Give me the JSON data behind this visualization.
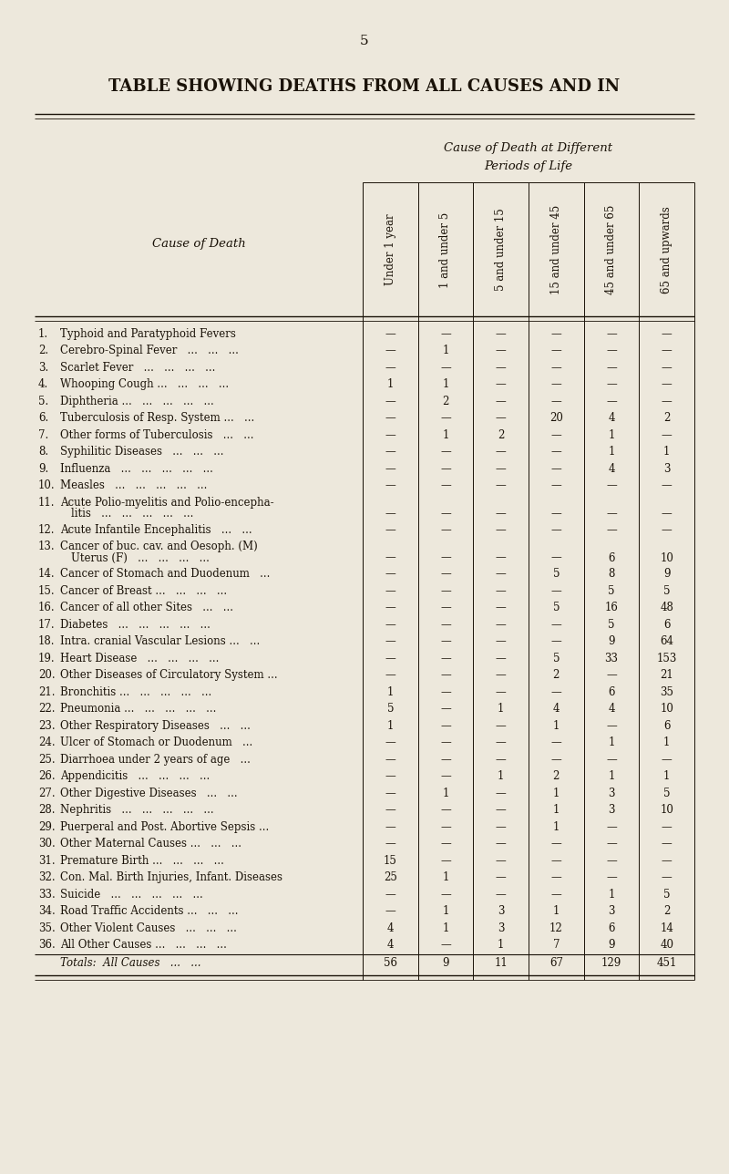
{
  "page_number": "5",
  "title": "TABLE SHOWING DEATHS FROM ALL CAUSES AND IN",
  "subtitle1": "Cause of Death at Different",
  "subtitle2": "Periods of Life",
  "col_header_left": "Cause of Death",
  "col_headers": [
    "Under 1 year",
    "1 and under 5",
    "5 and under 15",
    "15 and under 45",
    "45 and under 65",
    "65 and upwards"
  ],
  "bg_color": "#ede8dc",
  "text_color": "#1a1208",
  "rows": [
    {
      "num": "1.",
      "label": "Typhoid and Paratyphoid Fevers",
      "dots": "...",
      "vals": [
        "—",
        "—",
        "—",
        "—",
        "—",
        "—"
      ],
      "twolines": false
    },
    {
      "num": "2.",
      "label": "Cerebro-Spinal Fever   ...   ...   ...",
      "dots": "",
      "vals": [
        "—",
        "1",
        "—",
        "—",
        "—",
        "—"
      ],
      "twolines": false
    },
    {
      "num": "3.",
      "label": "Scarlet Fever   ...   ...   ...   ...",
      "dots": "",
      "vals": [
        "—",
        "—",
        "—",
        "—",
        "—",
        "—"
      ],
      "twolines": false
    },
    {
      "num": "4.",
      "label": "Whooping Cough ...   ...   ...   ...",
      "dots": "",
      "vals": [
        "1",
        "1",
        "—",
        "—",
        "—",
        "—"
      ],
      "twolines": false
    },
    {
      "num": "5.",
      "label": "Diphtheria ...   ...   ...   ...   ...",
      "dots": "",
      "vals": [
        "—",
        "2",
        "—",
        "—",
        "—",
        "—"
      ],
      "twolines": false
    },
    {
      "num": "6.",
      "label": "Tuberculosis of Resp. System ...   ...",
      "dots": "",
      "vals": [
        "—",
        "—",
        "—",
        "20",
        "4",
        "2"
      ],
      "twolines": false
    },
    {
      "num": "7.",
      "label": "Other forms of Tuberculosis   ...   ...",
      "dots": "",
      "vals": [
        "—",
        "1",
        "2",
        "—",
        "1",
        "—"
      ],
      "twolines": false
    },
    {
      "num": "8.",
      "label": "Syphilitic Diseases   ...   ...   ...",
      "dots": "",
      "vals": [
        "—",
        "—",
        "—",
        "—",
        "1",
        "1"
      ],
      "twolines": false
    },
    {
      "num": "9.",
      "label": "Influenza   ...   ...   ...   ...   ...",
      "dots": "",
      "vals": [
        "—",
        "—",
        "—",
        "—",
        "4",
        "3"
      ],
      "twolines": false
    },
    {
      "num": "10.",
      "label": "Measles   ...   ...   ...   ...   ...",
      "dots": "",
      "vals": [
        "—",
        "—",
        "—",
        "—",
        "—",
        "—"
      ],
      "twolines": false
    },
    {
      "num": "11.",
      "label1": "Acute Polio-myelitis and Polio-encepha-",
      "label2": "litis   ...   ...   ...   ...   ...",
      "dots": "",
      "vals": [
        "—",
        "—",
        "—",
        "—",
        "—",
        "—"
      ],
      "twolines": true
    },
    {
      "num": "12.",
      "label": "Acute Infantile Encephalitis   ...   ...",
      "dots": "",
      "vals": [
        "—",
        "—",
        "—",
        "—",
        "—",
        "—"
      ],
      "twolines": false
    },
    {
      "num": "13.",
      "label1": "Cancer of buc. cav. and Oesoph. (M)",
      "label2": "Uterus (F)   ...   ...   ...   ...",
      "dots": "",
      "vals": [
        "—",
        "—",
        "—",
        "—",
        "6",
        "10"
      ],
      "twolines": true
    },
    {
      "num": "14.",
      "label": "Cancer of Stomach and Duodenum   ...",
      "dots": "",
      "vals": [
        "—",
        "—",
        "—",
        "5",
        "8",
        "9"
      ],
      "twolines": false
    },
    {
      "num": "15.",
      "label": "Cancer of Breast ...   ...   ...   ...",
      "dots": "",
      "vals": [
        "—",
        "—",
        "—",
        "—",
        "5",
        "5"
      ],
      "twolines": false
    },
    {
      "num": "16.",
      "label": "Cancer of all other Sites   ...   ...",
      "dots": "",
      "vals": [
        "—",
        "—",
        "—",
        "5",
        "16",
        "48"
      ],
      "twolines": false
    },
    {
      "num": "17.",
      "label": "Diabetes   ...   ...   ...   ...   ...",
      "dots": "",
      "vals": [
        "—",
        "—",
        "—",
        "—",
        "5",
        "6"
      ],
      "twolines": false
    },
    {
      "num": "18.",
      "label": "Intra. cranial Vascular Lesions ...   ...",
      "dots": "",
      "vals": [
        "—",
        "—",
        "—",
        "—",
        "9",
        "64"
      ],
      "twolines": false
    },
    {
      "num": "19.",
      "label": "Heart Disease   ...   ...   ...   ...",
      "dots": "",
      "vals": [
        "—",
        "—",
        "—",
        "5",
        "33",
        "153"
      ],
      "twolines": false
    },
    {
      "num": "20.",
      "label": "Other Diseases of Circulatory System ...",
      "dots": "",
      "vals": [
        "—",
        "—",
        "—",
        "2",
        "—",
        "21"
      ],
      "twolines": false
    },
    {
      "num": "21.",
      "label": "Bronchitis ...   ...   ...   ...   ...",
      "dots": "",
      "vals": [
        "1",
        "—",
        "—",
        "—",
        "6",
        "35"
      ],
      "twolines": false
    },
    {
      "num": "22.",
      "label": "Pneumonia ...   ...   ...   ...   ...",
      "dots": "",
      "vals": [
        "5",
        "—",
        "1",
        "4",
        "4",
        "10"
      ],
      "twolines": false
    },
    {
      "num": "23.",
      "label": "Other Respiratory Diseases   ...   ...",
      "dots": "",
      "vals": [
        "1",
        "—",
        "—",
        "1",
        "—",
        "6"
      ],
      "twolines": false
    },
    {
      "num": "24.",
      "label": "Ulcer of Stomach or Duodenum   ...",
      "dots": "",
      "vals": [
        "—",
        "—",
        "—",
        "—",
        "1",
        "1"
      ],
      "twolines": false
    },
    {
      "num": "25.",
      "label": "Diarrhoea under 2 years of age   ...",
      "dots": "",
      "vals": [
        "—",
        "—",
        "—",
        "—",
        "—",
        "—"
      ],
      "twolines": false
    },
    {
      "num": "26.",
      "label": "Appendicitis   ...   ...   ...   ...",
      "dots": "",
      "vals": [
        "—",
        "—",
        "1",
        "2",
        "1",
        "1"
      ],
      "twolines": false
    },
    {
      "num": "27.",
      "label": "Other Digestive Diseases   ...   ...",
      "dots": "",
      "vals": [
        "—",
        "1",
        "—",
        "1",
        "3",
        "5"
      ],
      "twolines": false
    },
    {
      "num": "28.",
      "label": "Nephritis   ...   ...   ...   ...   ...",
      "dots": "",
      "vals": [
        "—",
        "—",
        "—",
        "1",
        "3",
        "10"
      ],
      "twolines": false
    },
    {
      "num": "29.",
      "label": "Puerperal and Post. Abortive Sepsis ...",
      "dots": "",
      "vals": [
        "—",
        "—",
        "—",
        "1",
        "—",
        "—"
      ],
      "twolines": false
    },
    {
      "num": "30.",
      "label": "Other Maternal Causes ...   ...   ...",
      "dots": "",
      "vals": [
        "—",
        "—",
        "—",
        "—",
        "—",
        "—"
      ],
      "twolines": false
    },
    {
      "num": "31.",
      "label": "Premature Birth ...   ...   ...   ...",
      "dots": "",
      "vals": [
        "15",
        "—",
        "—",
        "—",
        "—",
        "—"
      ],
      "twolines": false
    },
    {
      "num": "32.",
      "label": "Con. Mal. Birth Injuries, Infant. Diseases",
      "dots": "",
      "vals": [
        "25",
        "1",
        "—",
        "—",
        "—",
        "—"
      ],
      "twolines": false
    },
    {
      "num": "33.",
      "label": "Suicide   ...   ...   ...   ...   ...",
      "dots": "",
      "vals": [
        "—",
        "—",
        "—",
        "—",
        "1",
        "5"
      ],
      "twolines": false
    },
    {
      "num": "34.",
      "label": "Road Traffic Accidents ...   ...   ...",
      "dots": "",
      "vals": [
        "—",
        "1",
        "3",
        "1",
        "3",
        "2"
      ],
      "twolines": false
    },
    {
      "num": "35.",
      "label": "Other Violent Causes   ...   ...   ...",
      "dots": "",
      "vals": [
        "4",
        "1",
        "3",
        "12",
        "6",
        "14"
      ],
      "twolines": false
    },
    {
      "num": "36.",
      "label": "All Other Causes ...   ...   ...   ...",
      "dots": "",
      "vals": [
        "4",
        "—",
        "1",
        "7",
        "9",
        "40"
      ],
      "twolines": false
    }
  ],
  "totals_label": "Totals:  All Causes",
  "totals_dots": "...   ...",
  "totals_vals": [
    "56",
    "9",
    "11",
    "67",
    "129",
    "451"
  ],
  "font_size_title": 13,
  "font_size_header": 9.5,
  "font_size_body": 8.5,
  "font_size_page": 11
}
